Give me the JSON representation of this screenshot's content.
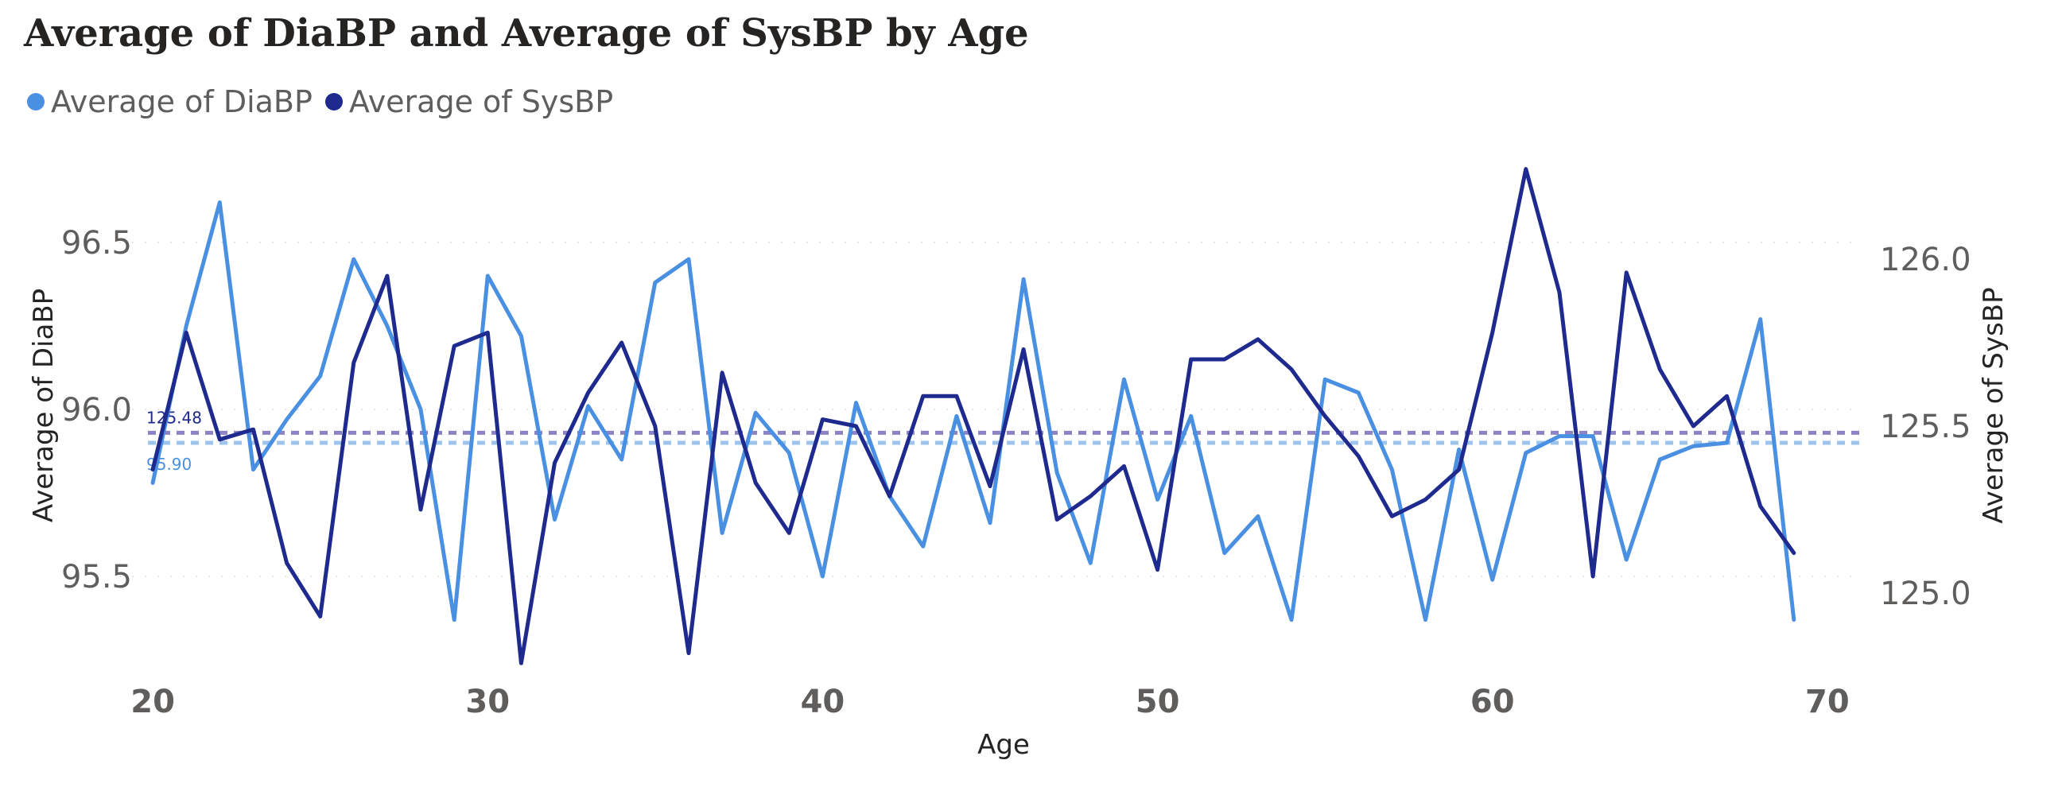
{
  "chart_data": {
    "type": "line",
    "title": "Average of DiaBP and Average of SysBP by Age",
    "xlabel": "Age",
    "ylabel_left": "Average of DiaBP",
    "ylabel_right": "Average of SysBP",
    "xlim": [
      19,
      71
    ],
    "ylim_left": [
      95.25,
      96.75
    ],
    "ylim_right": [
      124.8,
      126.3
    ],
    "x_ticks": [
      20,
      30,
      40,
      50,
      60,
      70
    ],
    "y_ticks_left": [
      95.5,
      96.0,
      96.5
    ],
    "y_ticks_left_labels": [
      "95.5",
      "96.0",
      "96.5"
    ],
    "y_ticks_right": [
      125.0,
      125.5,
      126.0
    ],
    "y_ticks_right_labels": [
      "125.0",
      "125.5",
      "126.0"
    ],
    "grid": true,
    "legend_position": "top-left",
    "colors": {
      "diabp": "#4a90e2",
      "sysbp": "#1f2a8f",
      "diabp_ref": "#9cc4ec",
      "sysbp_ref": "#8c84c4"
    },
    "x": [
      20,
      21,
      22,
      23,
      24,
      25,
      26,
      27,
      28,
      29,
      30,
      31,
      32,
      33,
      34,
      35,
      36,
      37,
      38,
      39,
      40,
      41,
      42,
      43,
      44,
      45,
      46,
      47,
      48,
      49,
      50,
      51,
      52,
      53,
      54,
      55,
      56,
      57,
      58,
      59,
      60,
      61,
      62,
      63,
      64,
      65,
      66,
      67,
      68,
      69
    ],
    "series": [
      {
        "name": "Average of DiaBP",
        "axis": "left",
        "values": [
          95.78,
          96.25,
          96.62,
          95.82,
          95.97,
          96.1,
          96.45,
          96.25,
          96.0,
          95.37,
          96.4,
          96.22,
          95.67,
          96.01,
          95.85,
          96.38,
          96.45,
          95.63,
          95.99,
          95.87,
          95.5,
          96.02,
          95.74,
          95.59,
          95.98,
          95.66,
          96.39,
          95.81,
          95.54,
          96.09,
          95.73,
          95.98,
          95.57,
          95.68,
          95.37,
          96.09,
          96.05,
          95.82,
          95.37,
          95.88,
          95.49,
          95.87,
          95.92,
          95.92,
          95.55,
          95.85,
          95.89,
          95.9,
          96.27,
          95.37
        ]
      },
      {
        "name": "Average of SysBP",
        "axis": "right",
        "values": [
          125.37,
          125.78,
          125.46,
          125.49,
          125.09,
          124.93,
          125.69,
          125.95,
          125.25,
          125.74,
          125.78,
          124.79,
          125.39,
          125.6,
          125.75,
          125.5,
          124.82,
          125.66,
          125.33,
          125.18,
          125.52,
          125.5,
          125.29,
          125.59,
          125.59,
          125.32,
          125.73,
          125.22,
          125.29,
          125.38,
          125.07,
          125.7,
          125.7,
          125.76,
          125.67,
          125.53,
          125.41,
          125.23,
          125.28,
          125.37,
          125.78,
          126.27,
          125.9,
          125.05,
          125.96,
          125.67,
          125.5,
          125.59,
          125.26,
          125.12
        ]
      }
    ],
    "reference_lines": [
      {
        "label": "125.48",
        "axis": "right",
        "value": 125.48
      },
      {
        "label": "95.90",
        "axis": "left",
        "value": 95.9
      }
    ]
  }
}
